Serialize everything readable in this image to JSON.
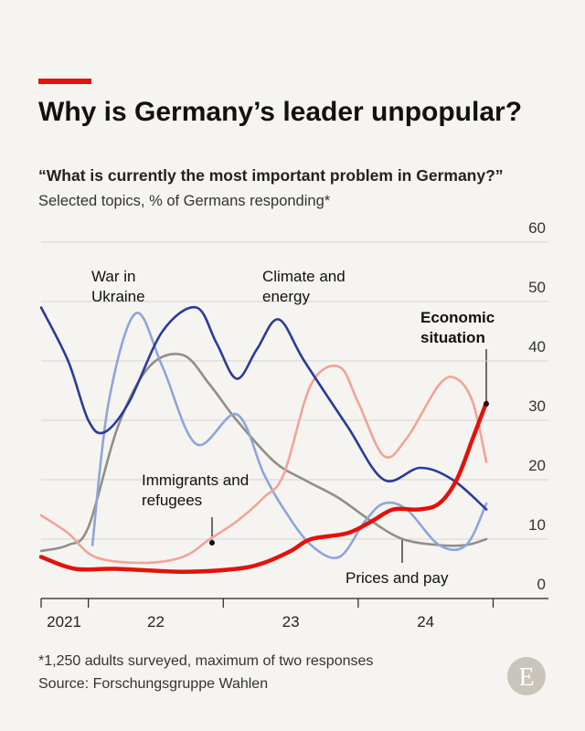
{
  "chart_data": {
    "type": "line",
    "title": "Why is Germany’s leader unpopular?",
    "subtitle": "“What is currently the most important problem in Germany?”",
    "description": "Selected topics, % of Germans responding*",
    "footnote": "*1,250 adults surveyed, maximum of two responses",
    "source": "Source: Forschungsgruppe Wahlen",
    "logo": "E",
    "ylim": [
      0,
      60
    ],
    "yticks": [
      0,
      10,
      20,
      30,
      40,
      50,
      60
    ],
    "grid": true,
    "xlim": [
      2021.65,
      2025.41
    ],
    "xticks": [
      {
        "value": 2021.82,
        "label": "2021"
      },
      {
        "value": 2022.5,
        "label": "22"
      },
      {
        "value": 2023.5,
        "label": "23"
      },
      {
        "value": 2024.5,
        "label": "24"
      }
    ],
    "xtick_marks": [
      2021.65,
      2022,
      2023,
      2024,
      2025
    ],
    "series": [
      {
        "name": "Immigrants and refugees",
        "color": "#8f8f88",
        "x": [
          2021.65,
          2021.85,
          2022.0,
          2022.22,
          2022.45,
          2022.7,
          2022.9,
          2023.1,
          2023.38,
          2023.6,
          2023.85,
          2024.1,
          2024.33,
          2024.6,
          2024.8,
          2024.95
        ],
        "values": [
          8,
          9,
          12,
          29,
          39,
          41,
          36,
          30,
          23,
          20,
          17,
          13,
          10,
          9,
          9,
          10
        ]
      },
      {
        "name": "War in Ukraine",
        "color": "#8fa5d8",
        "x": [
          2022.03,
          2022.15,
          2022.35,
          2022.55,
          2022.8,
          2023.1,
          2023.3,
          2023.45,
          2023.65,
          2023.86,
          2024.05,
          2024.19,
          2024.36,
          2024.6,
          2024.8,
          2024.95
        ],
        "values": [
          9,
          33,
          48,
          39,
          26,
          31,
          21,
          15,
          9,
          7,
          13,
          16,
          15,
          9,
          9,
          16
        ]
      },
      {
        "name": "Prices and pay",
        "color": "#f2a398",
        "x": [
          2021.65,
          2021.85,
          2022.05,
          2022.4,
          2022.7,
          2022.9,
          2023.1,
          2023.3,
          2023.45,
          2023.65,
          2023.86,
          2024.0,
          2024.19,
          2024.36,
          2024.6,
          2024.73,
          2024.85,
          2024.95
        ],
        "values": [
          14,
          11,
          7,
          6,
          7,
          10,
          13,
          17,
          21,
          36,
          39,
          33,
          24,
          27,
          36,
          37,
          33,
          23
        ]
      },
      {
        "name": "Climate and energy",
        "color": "#2b3a9c",
        "x": [
          2021.65,
          2021.85,
          2022.0,
          2022.12,
          2022.3,
          2022.55,
          2022.8,
          2022.95,
          2023.1,
          2023.25,
          2023.41,
          2023.6,
          2023.92,
          2024.19,
          2024.46,
          2024.7,
          2024.95
        ],
        "values": [
          49,
          40,
          30,
          28,
          33,
          45,
          49,
          43,
          37,
          42,
          47,
          40,
          29,
          20,
          22,
          20,
          15
        ]
      },
      {
        "name": "Economic situation",
        "color": "#e3120b",
        "x": [
          2021.65,
          2021.9,
          2022.2,
          2022.7,
          2023.1,
          2023.3,
          2023.5,
          2023.65,
          2023.92,
          2024.1,
          2024.26,
          2024.45,
          2024.6,
          2024.73,
          2024.85,
          2024.95
        ],
        "values": [
          7,
          5,
          5,
          4.5,
          5,
          6,
          8,
          10,
          11,
          13,
          15,
          15,
          16,
          20,
          27,
          33
        ]
      }
    ]
  }
}
